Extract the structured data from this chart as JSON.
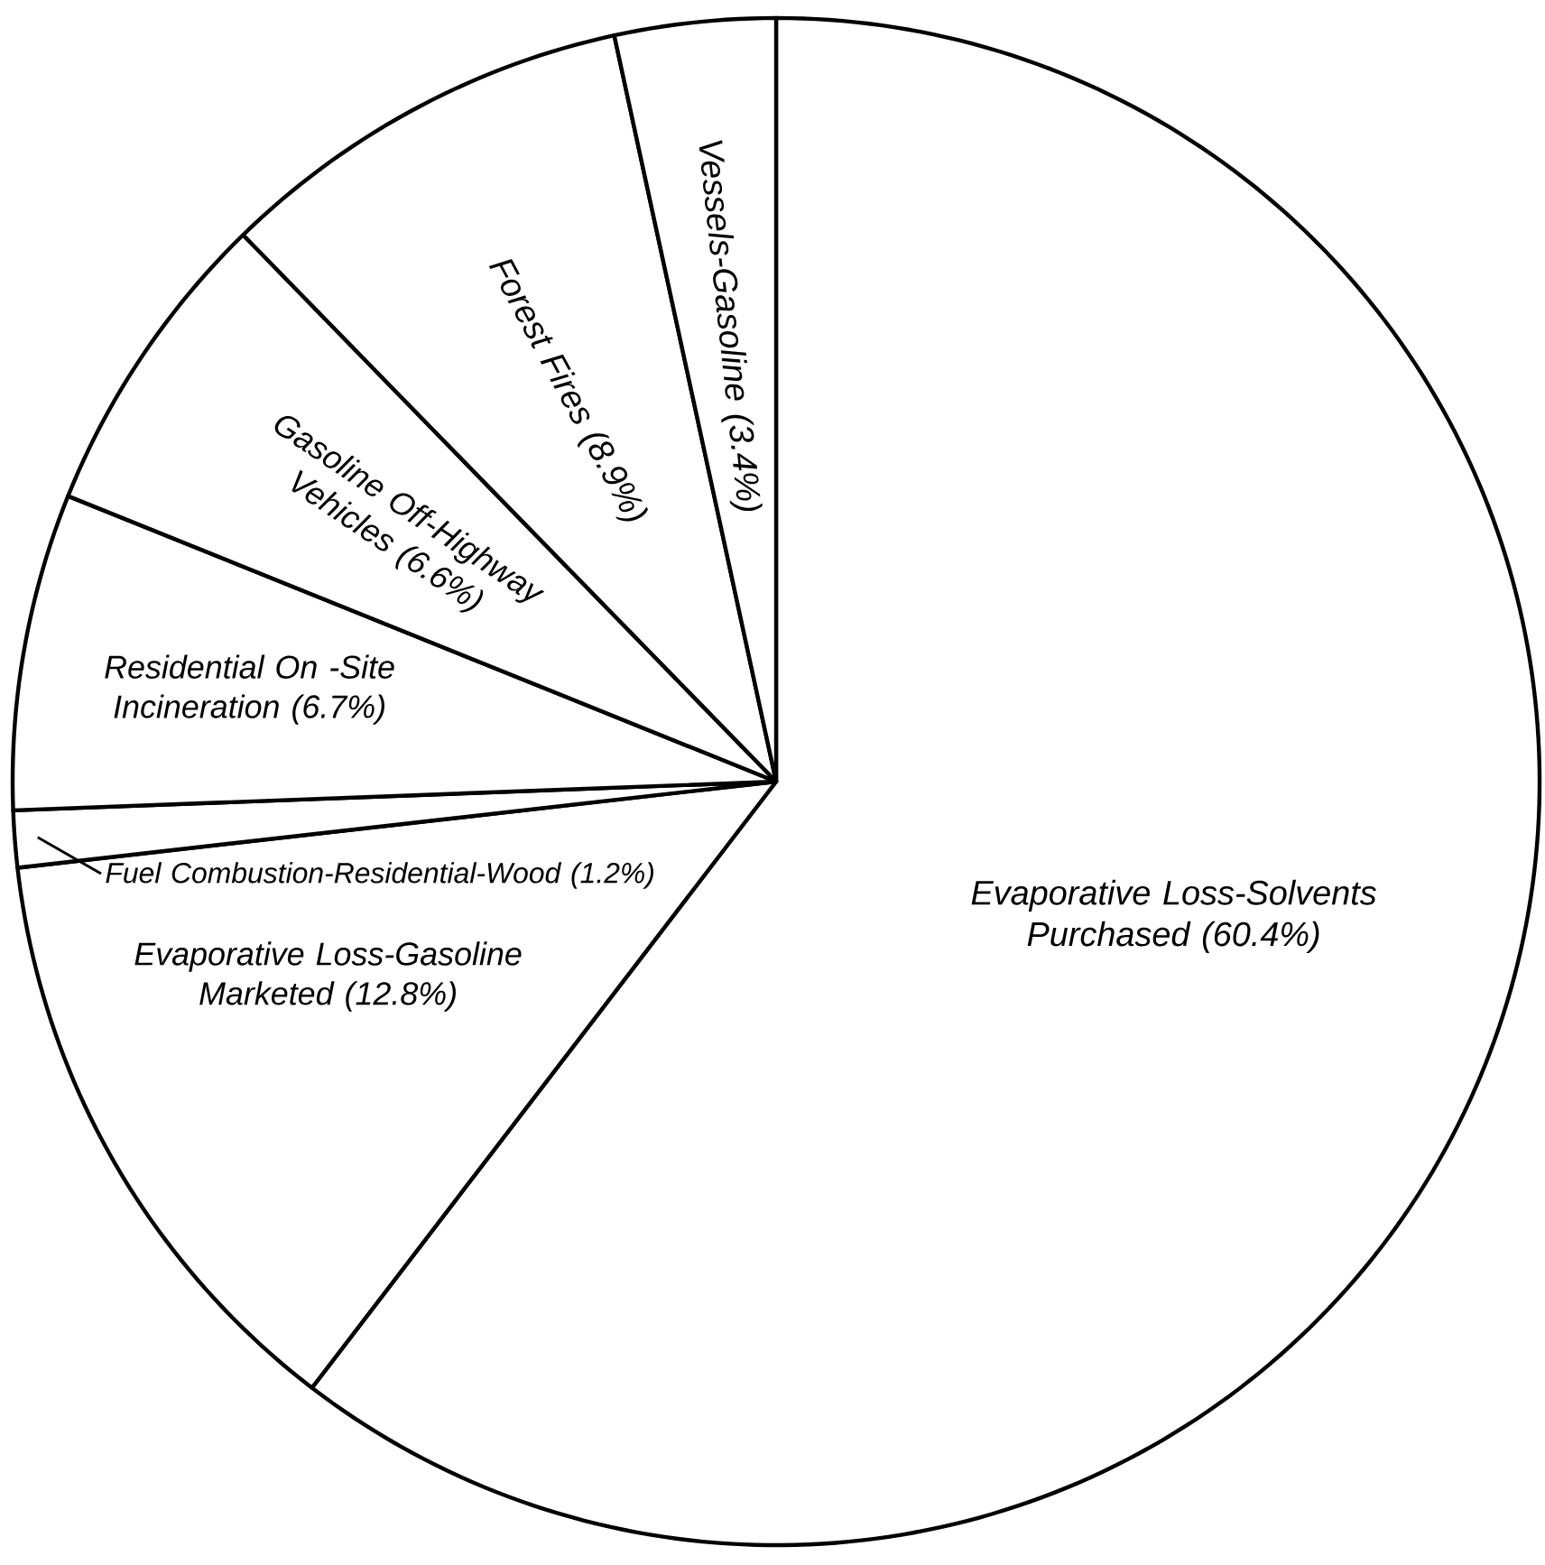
{
  "chart_data": {
    "type": "pie",
    "categories": [
      "Evaporative Loss-Solvents Purchased",
      "Evaporative Loss-Gasoline Marketed",
      "Fuel Combustion-Residential-Wood",
      "Residential On -Site Incineration",
      "Gasoline Off-Highway Vehicles",
      "Forest Fires",
      "Vessels-Gasoline"
    ],
    "values": [
      60.4,
      12.8,
      1.2,
      6.7,
      6.6,
      8.9,
      3.4
    ],
    "colors": [
      "#ffffff",
      "#ffffff",
      "#ffffff",
      "#ffffff",
      "#ffffff",
      "#ffffff",
      "#ffffff"
    ],
    "value_labels": [
      "(60.4%)",
      "(12.8%)",
      "(1.2%)",
      "(6.7%)",
      "(6.6%)",
      "(8.9%)",
      "(3.4%)"
    ]
  }
}
